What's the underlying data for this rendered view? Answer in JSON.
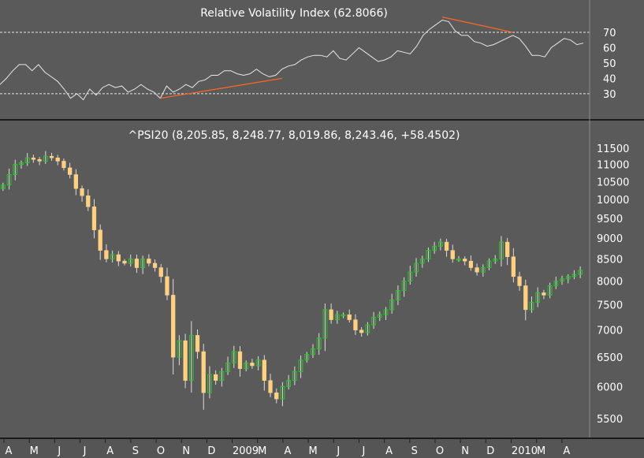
{
  "chart_data": [
    {
      "type": "line",
      "title": "Relative Volatility Index (62.8066)",
      "ylim": [
        15,
        87
      ],
      "yticks": [
        30,
        40,
        50,
        60,
        70
      ],
      "reference_lines": [
        30,
        70
      ],
      "series": [
        {
          "values": [
            36,
            40,
            45,
            49,
            49,
            45,
            49,
            44,
            41,
            38,
            33,
            27,
            30,
            26,
            33,
            29,
            34,
            36,
            34,
            35,
            31,
            33,
            36,
            33,
            31,
            27,
            35,
            31,
            33,
            36,
            34,
            38,
            39,
            42,
            42,
            45,
            45,
            43,
            42,
            43,
            46,
            43,
            41,
            42,
            46,
            48,
            49,
            52,
            54,
            55,
            55,
            54,
            58,
            53,
            52,
            56,
            60,
            57,
            54,
            51,
            52,
            54,
            58,
            57,
            56,
            61,
            68,
            72,
            75,
            78,
            77,
            71,
            68,
            68,
            64,
            63,
            61,
            62,
            64,
            66,
            68,
            66,
            61,
            55,
            55,
            54,
            60,
            63,
            66,
            65,
            62,
            63
          ]
        }
      ],
      "annotations": [
        {
          "type": "trendline",
          "from": [
            25,
            27
          ],
          "to": [
            44,
            40
          ],
          "color": "#ff6622"
        },
        {
          "type": "trendline",
          "from": [
            69,
            80
          ],
          "to": [
            80,
            70
          ],
          "color": "#ff6622"
        }
      ]
    },
    {
      "type": "candlestick",
      "title": "^PSI20 (8,205.85, 8,248.77, 8,019.86, 8,243.46, +58.4502)",
      "y_scale": "log",
      "yticks": [
        5500,
        6000,
        6500,
        7000,
        7500,
        8000,
        8500,
        9000,
        9500,
        10000,
        10500,
        11000,
        11500
      ],
      "ylim": [
        5300,
        11800
      ],
      "x_month_labels": [
        "A",
        "M",
        "J",
        "J",
        "A",
        "S",
        "O",
        "N",
        "D",
        "2009",
        "M",
        "A",
        "M",
        "J",
        "J",
        "A",
        "S",
        "O",
        "N",
        "D",
        "2010",
        "M",
        "A"
      ],
      "colors": {
        "up": "#22cc22",
        "down": "#ffd080",
        "wick": "#dddddd"
      },
      "close_values": [
        10400,
        10700,
        11000,
        11050,
        11200,
        11150,
        11100,
        11250,
        11200,
        11100,
        10900,
        10700,
        10300,
        10100,
        9800,
        9200,
        8700,
        8500,
        8600,
        8450,
        8400,
        8500,
        8300,
        8500,
        8400,
        8300,
        8100,
        7700,
        6500,
        6800,
        6100,
        6900,
        6600,
        5900,
        6200,
        6100,
        6250,
        6400,
        6600,
        6300,
        6400,
        6350,
        6450,
        6100,
        5900,
        5800,
        6000,
        6100,
        6250,
        6450,
        6550,
        6650,
        6850,
        7400,
        7200,
        7300,
        7300,
        7200,
        7000,
        6950,
        7100,
        7250,
        7300,
        7400,
        7600,
        7800,
        8000,
        8200,
        8400,
        8500,
        8700,
        8800,
        8900,
        8700,
        8500,
        8500,
        8450,
        8300,
        8200,
        8300,
        8450,
        8500,
        8900,
        8550,
        8100,
        7900,
        7400,
        7550,
        7750,
        7700,
        7900,
        8000,
        8050,
        8100,
        8150,
        8243
      ]
    }
  ]
}
